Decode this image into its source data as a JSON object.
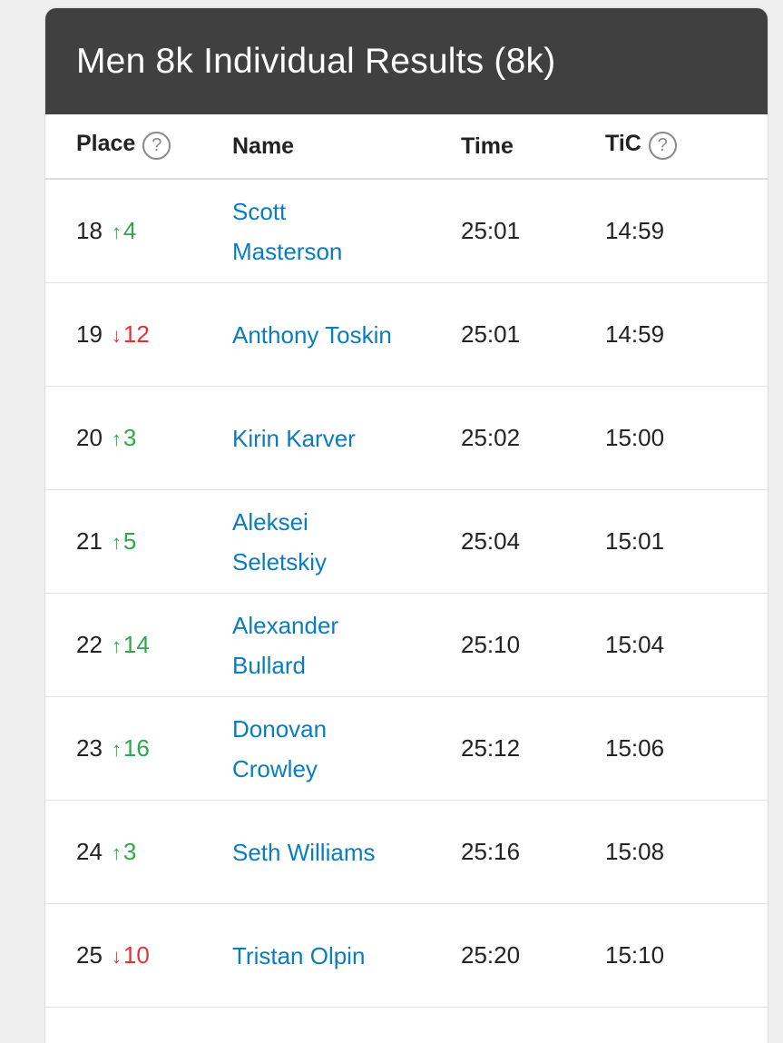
{
  "title": "Men 8k Individual Results (8k)",
  "columns": {
    "place": "Place",
    "name": "Name",
    "time": "Time",
    "tic": "TiC",
    "help_glyph": "?"
  },
  "colors": {
    "header_bg": "#404040",
    "link": "#0a7dbf",
    "up": "#2ea84a",
    "down": "#e03434"
  },
  "icons": {
    "up": "arrow-up-icon",
    "down": "arrow-down-icon",
    "help": "question-circle-icon"
  },
  "rows": [
    {
      "place": "18",
      "arrow": "↑",
      "dir": "up",
      "change": "4",
      "name": "Scott Masterson",
      "time": "25:01",
      "tic": "14:59"
    },
    {
      "place": "19",
      "arrow": "↓",
      "dir": "down",
      "change": "12",
      "name": "Anthony Toskin",
      "time": "25:01",
      "tic": "14:59"
    },
    {
      "place": "20",
      "arrow": "↑",
      "dir": "up",
      "change": "3",
      "name": "Kirin Karver",
      "time": "25:02",
      "tic": "15:00"
    },
    {
      "place": "21",
      "arrow": "↑",
      "dir": "up",
      "change": "5",
      "name": "Aleksei Seletskiy",
      "time": "25:04",
      "tic": "15:01"
    },
    {
      "place": "22",
      "arrow": "↑",
      "dir": "up",
      "change": "14",
      "name": "Alexander Bullard",
      "time": "25:10",
      "tic": "15:04"
    },
    {
      "place": "23",
      "arrow": "↑",
      "dir": "up",
      "change": "16",
      "name": "Donovan Crowley",
      "time": "25:12",
      "tic": "15:06"
    },
    {
      "place": "24",
      "arrow": "↑",
      "dir": "up",
      "change": "3",
      "name": "Seth Williams",
      "time": "25:16",
      "tic": "15:08"
    },
    {
      "place": "25",
      "arrow": "↓",
      "dir": "down",
      "change": "10",
      "name": "Tristan Olpin",
      "time": "25:20",
      "tic": "15:10"
    }
  ]
}
